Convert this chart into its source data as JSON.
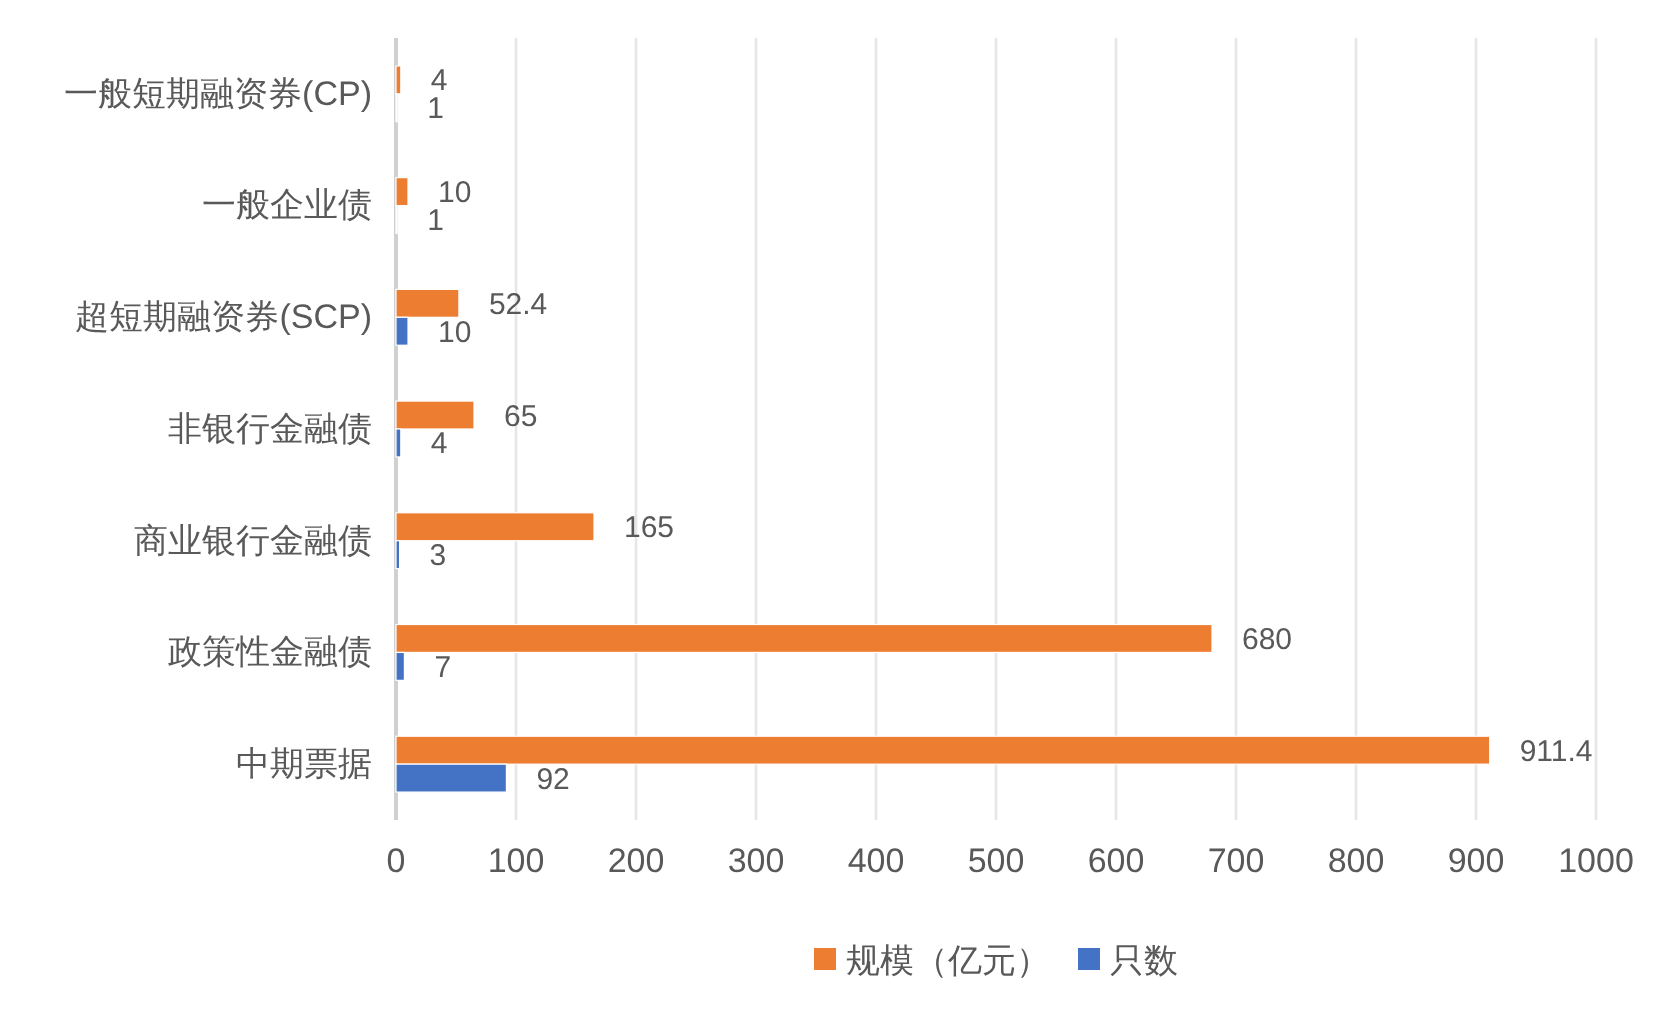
{
  "chart_data": {
    "type": "bar",
    "orientation": "horizontal",
    "categories": [
      "一般短期融资券(CP)",
      "一般企业债",
      "超短期融资券(SCP)",
      "非银行金融债",
      "商业银行金融债",
      "政策性金融债",
      "中期票据"
    ],
    "series": [
      {
        "name": "规模（亿元）",
        "color": "#ed7d31",
        "values": [
          4,
          10,
          52.4,
          65,
          165,
          680,
          911.4
        ]
      },
      {
        "name": "只数",
        "color": "#4472c4",
        "values": [
          1,
          1,
          10,
          4,
          3,
          7,
          92
        ]
      }
    ],
    "xlim": [
      0,
      1000
    ],
    "xticks": [
      0,
      100,
      200,
      300,
      400,
      500,
      600,
      700,
      800,
      900,
      1000
    ],
    "grid": "x",
    "legend": "bottom",
    "data_labels": true
  }
}
